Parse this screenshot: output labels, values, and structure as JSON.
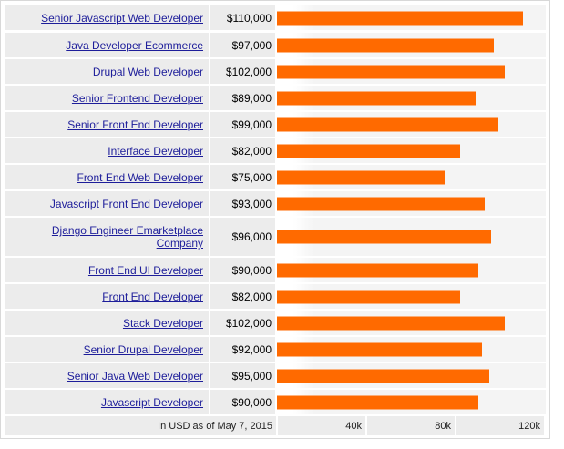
{
  "chart_data": {
    "type": "bar",
    "orientation": "horizontal",
    "categories": [
      "Senior Javascript Web Developer",
      "Java Developer Ecommerce",
      "Drupal Web Developer",
      "Senior Frontend Developer",
      "Senior Front End Developer",
      "Interface Developer",
      "Front End Web Developer",
      "Javascript Front End Developer",
      "Django Engineer Emarketplace Company",
      "Front End UI Developer",
      "Front End Developer",
      "Stack Developer",
      "Senior Drupal Developer",
      "Senior Java Web Developer",
      "Javascript Developer"
    ],
    "values": [
      110000,
      97000,
      102000,
      89000,
      99000,
      82000,
      75000,
      93000,
      96000,
      90000,
      82000,
      102000,
      92000,
      95000,
      90000
    ],
    "value_labels": [
      "$110,000",
      "$97,000",
      "$102,000",
      "$89,000",
      "$99,000",
      "$82,000",
      "$75,000",
      "$93,000",
      "$96,000",
      "$90,000",
      "$82,000",
      "$102,000",
      "$92,000",
      "$95,000",
      "$90,000"
    ],
    "xlim": [
      0,
      120000
    ],
    "ticks": [
      40000,
      80000,
      120000
    ],
    "tick_labels": [
      "40k",
      "80k",
      "120k"
    ],
    "footnote": "In USD as of May 7, 2015",
    "bar_color": "#ff6a00"
  }
}
